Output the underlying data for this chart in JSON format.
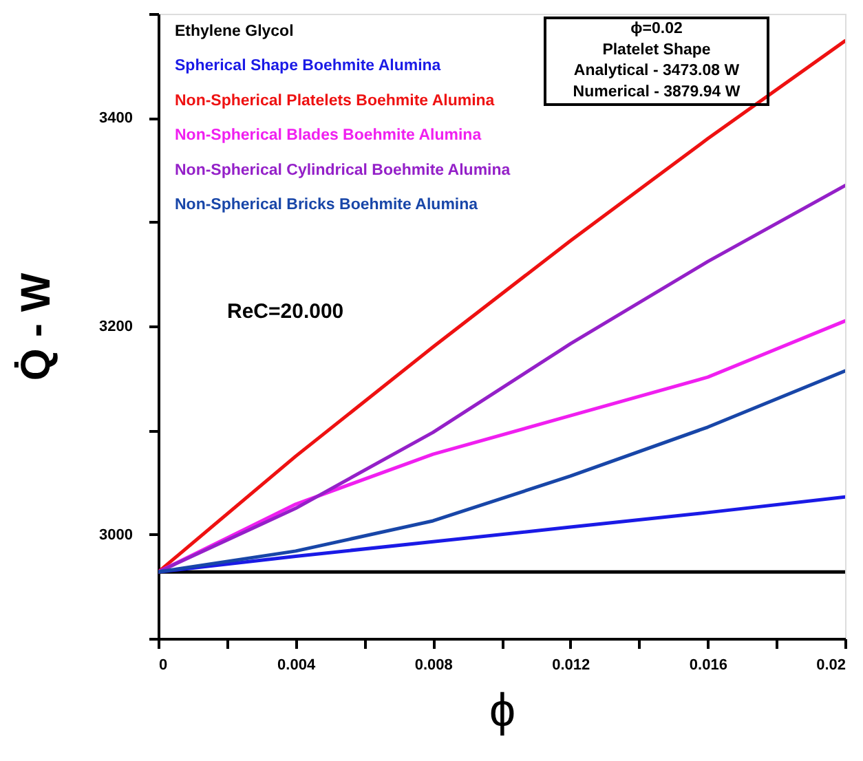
{
  "chart_data": {
    "type": "line",
    "xlabel": "ϕ",
    "ylabel": "Q̇ - W",
    "x": [
      0,
      0.004,
      0.008,
      0.012,
      0.016,
      0.02
    ],
    "series": [
      {
        "name": "Ethylene Glycol",
        "color": "#000000",
        "values": [
          2964,
          2964,
          2964,
          2964,
          2964,
          2964
        ]
      },
      {
        "name": "Spherical Shape  Boehmite Alumina",
        "color": "#1a1ae6",
        "values": [
          2964,
          2979,
          2993,
          3007,
          3021,
          3036
        ]
      },
      {
        "name": "Non-Spherical Platelets Boehmite Alumina",
        "color": "#ee1111",
        "values": [
          2964,
          3075,
          3180,
          3282,
          3380,
          3474
        ]
      },
      {
        "name": "Non-Spherical Blades Boehmite Alumina",
        "color": "#f01ff0",
        "values": [
          2964,
          3029,
          3077,
          3114,
          3151,
          3205
        ]
      },
      {
        "name": "Non-Spherical Cylindrical Boehmite Alumina",
        "color": "#9420c8",
        "values": [
          2964,
          3025,
          3098,
          3183,
          3262,
          3335
        ]
      },
      {
        "name": "Non-Spherical Bricks Boehmite Alumina",
        "color": "#1846a8",
        "values": [
          2964,
          2984,
          3013,
          3056,
          3103,
          3157
        ]
      }
    ],
    "xlim": [
      0,
      0.02
    ],
    "xticks": [
      0,
      {
        "value": 0.002,
        "label": null
      },
      0.004,
      {
        "value": 0.006,
        "label": null
      },
      0.008,
      {
        "value": 0.01,
        "label": null
      },
      0.012,
      {
        "value": 0.014,
        "label": null
      },
      0.016,
      {
        "value": 0.018,
        "label": null
      },
      0.02
    ],
    "ylim": [
      2900,
      3500
    ],
    "yticks": [
      {
        "value": 2900,
        "label": null
      },
      3000,
      {
        "value": 3100,
        "label": null
      },
      3200,
      {
        "value": 3300,
        "label": null
      },
      3400,
      {
        "value": 3500,
        "label": null
      }
    ],
    "legend": "top left",
    "annotations": [
      "ϕ=0.02",
      "Platelet Shape",
      "Analytical  - 3473.08 W",
      "Numerical -  3879.94 W",
      "ReC=20.000"
    ]
  }
}
